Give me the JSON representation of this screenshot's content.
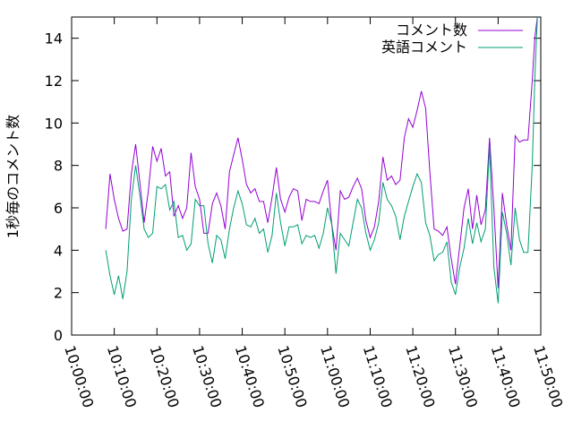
{
  "chart_data": {
    "type": "line",
    "title": "",
    "xlabel": "",
    "ylabel": "1秒毎のコメント数",
    "x_ticks": [
      "10:00:00",
      "10:10:00",
      "10:20:00",
      "10:30:00",
      "10:40:00",
      "10:50:00",
      "11:00:00",
      "11:10:00",
      "11:20:00",
      "11:30:00",
      "11:40:00",
      "11:50:00"
    ],
    "x_range_minutes": [
      0,
      110
    ],
    "y_ticks": [
      0,
      2,
      4,
      6,
      8,
      10,
      12,
      14
    ],
    "ylim": [
      0,
      15
    ],
    "grid": false,
    "legend_position": "top-right",
    "series": [
      {
        "name": "コメント数",
        "color": "#9400d3",
        "x": [
          8,
          9,
          10,
          11,
          12,
          13,
          14,
          15,
          16,
          17,
          18,
          19,
          20,
          21,
          22,
          23,
          24,
          25,
          26,
          27,
          28,
          29,
          30,
          31,
          32,
          33,
          34,
          35,
          36,
          37,
          38,
          39,
          40,
          41,
          42,
          43,
          44,
          45,
          46,
          47,
          48,
          49,
          50,
          51,
          52,
          53,
          54,
          55,
          56,
          57,
          58,
          59,
          60,
          61,
          62,
          63,
          64,
          65,
          66,
          67,
          68,
          69,
          70,
          71,
          72,
          73,
          74,
          75,
          76,
          77,
          78,
          79,
          80,
          81,
          82,
          83,
          84,
          85,
          86,
          87,
          88,
          89,
          90,
          91,
          92,
          93,
          94,
          95,
          96,
          97,
          98,
          99,
          100,
          101,
          102,
          103,
          104,
          105,
          106,
          107,
          108,
          108.6,
          109.2
        ],
        "values": [
          5.0,
          7.6,
          6.4,
          5.5,
          4.9,
          5.0,
          7.6,
          9.0,
          7.2,
          5.3,
          6.8,
          8.9,
          8.2,
          8.8,
          7.5,
          7.7,
          5.6,
          6.1,
          5.5,
          6.0,
          8.6,
          7.0,
          6.4,
          4.8,
          4.8,
          6.2,
          6.7,
          6.1,
          5.0,
          7.7,
          8.5,
          9.3,
          8.3,
          7.1,
          6.7,
          6.9,
          6.3,
          6.3,
          5.3,
          6.5,
          7.9,
          6.4,
          5.8,
          6.5,
          6.9,
          6.8,
          5.4,
          6.4,
          6.3,
          6.3,
          6.2,
          6.8,
          7.3,
          5.2,
          4.0,
          6.8,
          6.4,
          6.5,
          7.0,
          7.4,
          6.9,
          5.4,
          4.6,
          5.1,
          6.3,
          8.4,
          7.3,
          7.5,
          7.1,
          7.3,
          9.3,
          10.2,
          9.8,
          10.6,
          11.5,
          10.7,
          7.7,
          5.0,
          4.9,
          4.7,
          5.1,
          3.6,
          2.4,
          4.2,
          6.0,
          6.9,
          5.0,
          6.6,
          5.2,
          5.9,
          9.3,
          6.0,
          2.2,
          6.7,
          5.2,
          4.0,
          9.4,
          9.1,
          9.2,
          9.2,
          12.0,
          14.0,
          15.0
        ]
      },
      {
        "name": "英語コメント",
        "color": "#009e73",
        "x": [
          8,
          9,
          10,
          11,
          12,
          13,
          14,
          15,
          16,
          17,
          18,
          19,
          20,
          21,
          22,
          23,
          24,
          25,
          26,
          27,
          28,
          29,
          30,
          31,
          32,
          33,
          34,
          35,
          36,
          37,
          38,
          39,
          40,
          41,
          42,
          43,
          44,
          45,
          46,
          47,
          48,
          49,
          50,
          51,
          52,
          53,
          54,
          55,
          56,
          57,
          58,
          59,
          60,
          61,
          62,
          63,
          64,
          65,
          66,
          67,
          68,
          69,
          70,
          71,
          72,
          73,
          74,
          75,
          76,
          77,
          78,
          79,
          80,
          81,
          82,
          83,
          84,
          85,
          86,
          87,
          88,
          89,
          90,
          91,
          92,
          93,
          94,
          95,
          96,
          97,
          98,
          99,
          100,
          101,
          102,
          103,
          104,
          105,
          106,
          107,
          108,
          108.6,
          109.2
        ],
        "values": [
          4.0,
          2.8,
          1.9,
          2.8,
          1.7,
          3.0,
          6.4,
          8.0,
          6.6,
          5.0,
          4.6,
          4.8,
          7.0,
          6.9,
          7.1,
          5.9,
          6.3,
          4.6,
          4.7,
          4.0,
          4.3,
          6.4,
          6.1,
          6.1,
          4.3,
          3.4,
          4.7,
          4.5,
          3.6,
          5.0,
          6.0,
          6.8,
          6.2,
          5.2,
          5.1,
          5.5,
          4.8,
          5.0,
          3.9,
          4.7,
          6.7,
          5.3,
          4.2,
          5.1,
          5.1,
          5.2,
          4.3,
          4.7,
          4.6,
          4.7,
          4.1,
          4.8,
          6.0,
          5.2,
          2.9,
          4.8,
          4.5,
          4.2,
          5.3,
          6.4,
          6.0,
          4.8,
          4.0,
          4.5,
          5.3,
          7.2,
          6.4,
          6.1,
          5.6,
          4.5,
          5.6,
          6.3,
          7.0,
          7.6,
          7.2,
          5.3,
          4.7,
          3.5,
          3.8,
          3.9,
          4.4,
          2.5,
          1.9,
          3.2,
          4.1,
          5.5,
          4.3,
          5.3,
          4.4,
          5.0,
          8.9,
          3.2,
          1.5,
          5.8,
          4.8,
          3.3,
          6.0,
          4.5,
          3.9,
          3.9,
          8.0,
          12.0,
          15.0
        ]
      }
    ]
  }
}
